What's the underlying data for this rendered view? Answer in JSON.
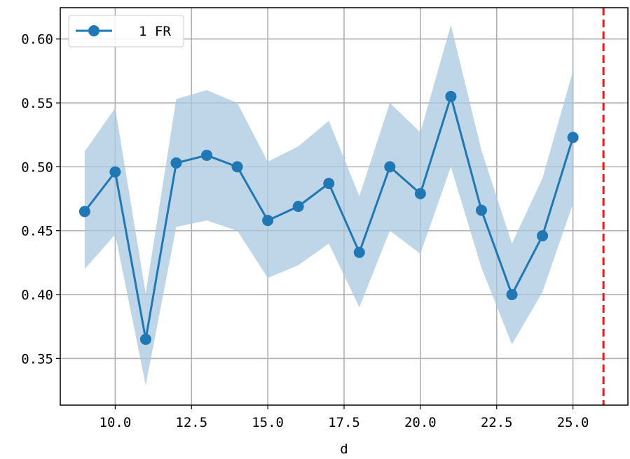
{
  "chart_data": {
    "type": "line",
    "title": "",
    "xlabel": "d",
    "ylabel": "",
    "xlim": [
      8.2,
      26.8
    ],
    "ylim": [
      0.3135,
      0.6245
    ],
    "grid": true,
    "legend_position": "top-left",
    "x_ticks": [
      10.0,
      12.5,
      15.0,
      17.5,
      20.0,
      22.5,
      25.0
    ],
    "x_tick_labels": [
      "10.0",
      "12.5",
      "15.0",
      "17.5",
      "20.0",
      "22.5",
      "25.0"
    ],
    "y_ticks": [
      0.35,
      0.4,
      0.45,
      0.5,
      0.55,
      0.6
    ],
    "y_tick_labels": [
      "0.35",
      "0.40",
      "0.45",
      "0.50",
      "0.55",
      "0.60"
    ],
    "series": [
      {
        "name": "1 FR",
        "color": "#1f77b4",
        "band_color": "#aac8e0",
        "marker": "circle",
        "x": [
          9,
          10,
          11,
          12,
          13,
          14,
          15,
          16,
          17,
          18,
          19,
          20,
          21,
          22,
          23,
          24,
          25
        ],
        "values": [
          0.465,
          0.496,
          0.365,
          0.503,
          0.509,
          0.5,
          0.458,
          0.469,
          0.487,
          0.433,
          0.5,
          0.479,
          0.555,
          0.466,
          0.4,
          0.446,
          0.523
        ],
        "lower": [
          0.42,
          0.447,
          0.329,
          0.453,
          0.458,
          0.45,
          0.413,
          0.423,
          0.44,
          0.39,
          0.45,
          0.432,
          0.5,
          0.421,
          0.361,
          0.402,
          0.471
        ],
        "upper": [
          0.512,
          0.546,
          0.401,
          0.553,
          0.56,
          0.55,
          0.504,
          0.516,
          0.536,
          0.477,
          0.55,
          0.527,
          0.611,
          0.513,
          0.44,
          0.491,
          0.575
        ]
      }
    ],
    "reference_line": {
      "orientation": "vertical",
      "x": 26,
      "color": "#e31a1c",
      "style": "dashed"
    }
  }
}
